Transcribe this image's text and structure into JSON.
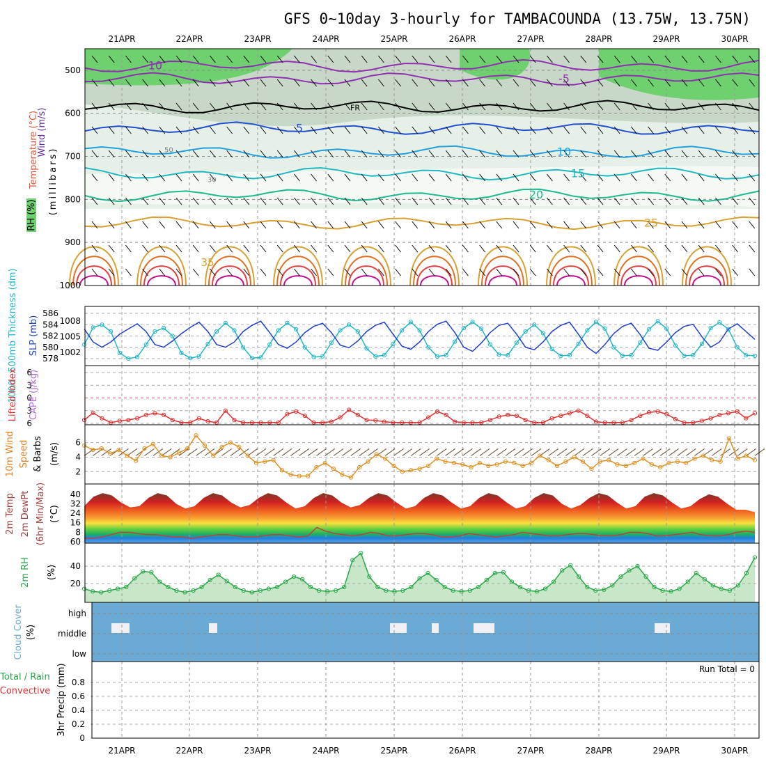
{
  "title": "GFS 0~10day 3-hourly for TAMBACOUNDA (13.75W, 13.75N)",
  "dates": [
    "21APR",
    "22APR",
    "23APR",
    "24APR",
    "25APR",
    "26APR",
    "27APR",
    "28APR",
    "29APR",
    "30APR"
  ],
  "colors": {
    "wind": "#000000",
    "temperature": "#e05a3a",
    "rh": "#2aa84a",
    "thickness": "#20b8c8",
    "slp": "#1f3fc8",
    "cape": "#b070d8",
    "lifted": "#e03030",
    "speed": "#e09020",
    "dewpt": "#c04040",
    "cloud": "#6aaad4",
    "precip_total": "#2aa84a",
    "precip_conv": "#e03030"
  },
  "chart_data": [
    {
      "panel": "upper-air",
      "type": "heatmap",
      "ylabel_parts": [
        "Wind (m/s)",
        "Temperature (°C)",
        "RH (%)"
      ],
      "ylabel_units": "(millibars)",
      "y_ticks": [
        500,
        600,
        700,
        800,
        900,
        1000
      ],
      "ylim": [
        1000,
        450
      ],
      "temperature_contour_labels": [
        "-10",
        "-5",
        "FR",
        "5",
        "10",
        "15",
        "20",
        "25",
        "35"
      ],
      "rh_contour_labels": [
        "50",
        "30"
      ]
    },
    {
      "panel": "thickness-slp",
      "type": "line",
      "ylabel_parts": [
        "1000~500mb Thickness (dm)",
        "SLP (mb)"
      ],
      "left_ticks": [
        578,
        580,
        582,
        584,
        586
      ],
      "right_ticks": [
        1002,
        1005,
        1008
      ],
      "series": [
        {
          "name": "1000~500mb Thickness (dm)",
          "axis": "left",
          "values": [
            580.5,
            583.5,
            584.0,
            582.8,
            579.0,
            578.0,
            578.3,
            580.5,
            582.8,
            583.4,
            582.0,
            579.0,
            578.1,
            578.4,
            580.6,
            582.8,
            584.3,
            583.0,
            580.0,
            578.1,
            578.2,
            580.5,
            583.0,
            584.3,
            583.2,
            580.0,
            578.3,
            578.4,
            580.8,
            583.0,
            584.0,
            582.8,
            579.8,
            578.4,
            578.6,
            580.6,
            583.0,
            584.5,
            583.0,
            580.0,
            578.4,
            578.6,
            581.0,
            583.4,
            584.5,
            583.3,
            580.5,
            578.7,
            578.6,
            580.8,
            582.8,
            584.0,
            582.5,
            579.7,
            578.5,
            578.6,
            580.6,
            583.0,
            584.5,
            583.3,
            580.0,
            578.5,
            578.6,
            580.8,
            583.2,
            584.6,
            583.3,
            580.3,
            578.5,
            578.6,
            580.6,
            583.4,
            584.4,
            583.2,
            580.0,
            578.6,
            578.5
          ]
        },
        {
          "name": "SLP (mb)",
          "axis": "right",
          "values": [
            1006.5,
            1004.0,
            1003.0,
            1004.0,
            1005.5,
            1006.5,
            1007.5,
            1006.0,
            1003.5,
            1003.0,
            1004.2,
            1005.6,
            1006.8,
            1007.8,
            1006.0,
            1003.5,
            1003.0,
            1004.0,
            1006.0,
            1007.2,
            1008.0,
            1005.8,
            1003.5,
            1002.8,
            1004.0,
            1005.8,
            1007.0,
            1007.6,
            1005.8,
            1003.4,
            1002.9,
            1004.2,
            1006.0,
            1007.2,
            1007.8,
            1005.5,
            1003.2,
            1002.6,
            1004.0,
            1006.0,
            1007.4,
            1008.0,
            1005.8,
            1003.0,
            1002.2,
            1003.8,
            1005.8,
            1007.2,
            1007.6,
            1005.5,
            1003.0,
            1002.5,
            1004.0,
            1006.0,
            1007.2,
            1007.8,
            1005.5,
            1003.0,
            1001.8,
            1003.5,
            1005.6,
            1007.0,
            1007.6,
            1005.4,
            1002.8,
            1002.4,
            1004.0,
            1005.8,
            1007.0,
            1007.4,
            1005.0,
            1003.0,
            1004.0,
            1006.5,
            1007.5,
            1006.0,
            1004.5
          ]
        }
      ]
    },
    {
      "panel": "cape-lifted",
      "type": "line",
      "ylabel_parts": [
        "Lifted Index",
        "CAPE (J/kg)"
      ],
      "left_ticks": [
        "6",
        "3",
        "0",
        "3",
        "6"
      ],
      "series": [
        {
          "name": "Lifted Index",
          "values": [
            5.2,
            3.5,
            4.8,
            5.8,
            5.4,
            5.2,
            4.8,
            4.0,
            3.6,
            4.0,
            5.2,
            5.8,
            5.8,
            4.8,
            5.5,
            5.8,
            3.0,
            5.2,
            5.8,
            5.8,
            5.8,
            5.8,
            5.8,
            3.8,
            3.2,
            4.2,
            5.8,
            5.8,
            5.6,
            4.6,
            2.8,
            4.0,
            5.2,
            5.3,
            5.6,
            5.8,
            5.8,
            5.8,
            5.8,
            4.6,
            3.2,
            4.0,
            5.6,
            5.8,
            5.8,
            5.8,
            5.2,
            4.4,
            4.0,
            4.2,
            5.2,
            5.8,
            5.8,
            4.8,
            4.2,
            3.6,
            3.0,
            4.2,
            5.6,
            5.8,
            5.8,
            5.8,
            5.2,
            4.2,
            3.4,
            3.2,
            3.8,
            5.0,
            5.8,
            5.8,
            5.4,
            4.8,
            4.0,
            3.6,
            3.2,
            4.8,
            3.6
          ]
        }
      ]
    },
    {
      "panel": "wind10m",
      "type": "line",
      "ylabel_parts": [
        "10m Wind",
        "Speed",
        "& Barbs",
        "(m/s)"
      ],
      "y_ticks": [
        2,
        4,
        6
      ],
      "series": [
        {
          "name": "Speed",
          "values": [
            5.6,
            5.0,
            5.2,
            4.5,
            5.0,
            4.2,
            3.5,
            5.2,
            5.8,
            4.2,
            4.0,
            4.6,
            5.2,
            7.0,
            5.6,
            4.2,
            5.4,
            6.0,
            5.4,
            4.2,
            3.2,
            3.4,
            3.6,
            2.2,
            1.6,
            1.4,
            1.4,
            2.6,
            3.2,
            2.4,
            1.6,
            1.2,
            2.6,
            3.4,
            4.4,
            3.8,
            2.8,
            2.0,
            2.2,
            2.4,
            2.8,
            3.8,
            3.4,
            3.2,
            3.0,
            2.6,
            3.2,
            2.8,
            3.0,
            3.4,
            3.2,
            2.8,
            3.2,
            4.2,
            3.6,
            2.8,
            3.4,
            4.0,
            3.4,
            2.4,
            3.4,
            3.6,
            3.0,
            2.8,
            3.2,
            3.8,
            3.0,
            2.6,
            3.2,
            3.4,
            3.2,
            3.8,
            4.2,
            3.6,
            3.4,
            6.6,
            3.8,
            4.2,
            3.6
          ]
        }
      ]
    },
    {
      "panel": "temperature",
      "type": "area",
      "ylabel_parts": [
        "2m Temp",
        "2m DewPt",
        "(6hr Min/Max)",
        "(°C)"
      ],
      "y_ticks": [
        "40",
        "32",
        "24",
        "16",
        "8",
        "60"
      ],
      "series": [
        {
          "name": "2m Temp",
          "values": [
            30,
            38,
            41,
            39,
            33,
            29,
            30,
            37,
            41,
            39,
            32,
            28,
            30,
            37,
            41,
            39,
            33,
            29,
            31,
            37,
            41,
            39,
            33,
            28,
            30,
            37,
            41,
            39,
            33,
            29,
            31,
            37,
            41,
            39,
            33,
            28,
            30,
            37,
            41,
            39,
            33,
            28,
            30,
            37,
            41,
            39,
            33,
            28,
            30,
            37,
            41,
            39,
            32,
            28,
            31,
            37,
            41,
            39,
            33,
            28,
            30,
            38,
            41,
            39,
            33,
            28,
            30,
            36,
            40,
            38,
            32,
            27,
            27,
            25
          ]
        },
        {
          "name": "2m DewPt",
          "values": [
            3,
            3,
            4,
            6,
            8,
            8,
            7,
            6,
            6,
            5,
            4,
            4,
            3,
            4,
            5,
            6,
            6,
            5,
            4,
            4,
            5,
            6,
            6,
            5,
            4,
            5,
            12,
            9,
            7,
            6,
            5,
            6,
            8,
            7,
            5,
            5,
            6,
            7,
            7,
            6,
            4,
            4,
            5,
            7,
            6,
            5,
            4,
            5,
            6,
            8,
            7,
            6,
            5,
            5,
            6,
            7,
            7,
            6,
            5,
            5,
            6,
            8,
            8,
            7,
            5,
            5,
            6,
            7,
            8,
            6,
            5,
            5,
            6,
            8,
            9,
            8
          ]
        }
      ]
    },
    {
      "panel": "rh2m",
      "type": "area",
      "ylabel_parts": [
        "2m RH",
        "(%)"
      ],
      "y_ticks": [
        20,
        40
      ],
      "series": [
        {
          "name": "2m RH",
          "values": [
            14,
            11,
            10,
            12,
            14,
            16,
            26,
            34,
            33,
            22,
            16,
            12,
            10,
            12,
            16,
            24,
            30,
            23,
            16,
            12,
            10,
            12,
            14,
            16,
            22,
            28,
            25,
            16,
            12,
            11,
            12,
            16,
            47,
            55,
            28,
            16,
            12,
            11,
            12,
            16,
            26,
            32,
            24,
            16,
            12,
            11,
            12,
            16,
            24,
            32,
            33,
            22,
            16,
            12,
            11,
            14,
            22,
            35,
            41,
            28,
            16,
            12,
            13,
            18,
            28,
            35,
            40,
            28,
            16,
            12,
            11,
            14,
            22,
            32,
            25,
            18,
            14,
            12,
            18,
            32,
            50
          ]
        }
      ]
    },
    {
      "panel": "cloud",
      "type": "bar",
      "ylabel_parts": [
        "Cloud Cover",
        "(%)"
      ],
      "y_ticks": [
        "high",
        "middle",
        "low"
      ]
    },
    {
      "panel": "precip",
      "type": "bar",
      "ylabel_parts": [
        "3hr Precip (mm)",
        "Total / Rain",
        "Convective"
      ],
      "y_ticks": [
        0,
        0.2,
        0.4,
        0.6,
        0.8
      ],
      "ylim": [
        0,
        1
      ],
      "run_total": "Run Total = 0",
      "values": []
    }
  ]
}
